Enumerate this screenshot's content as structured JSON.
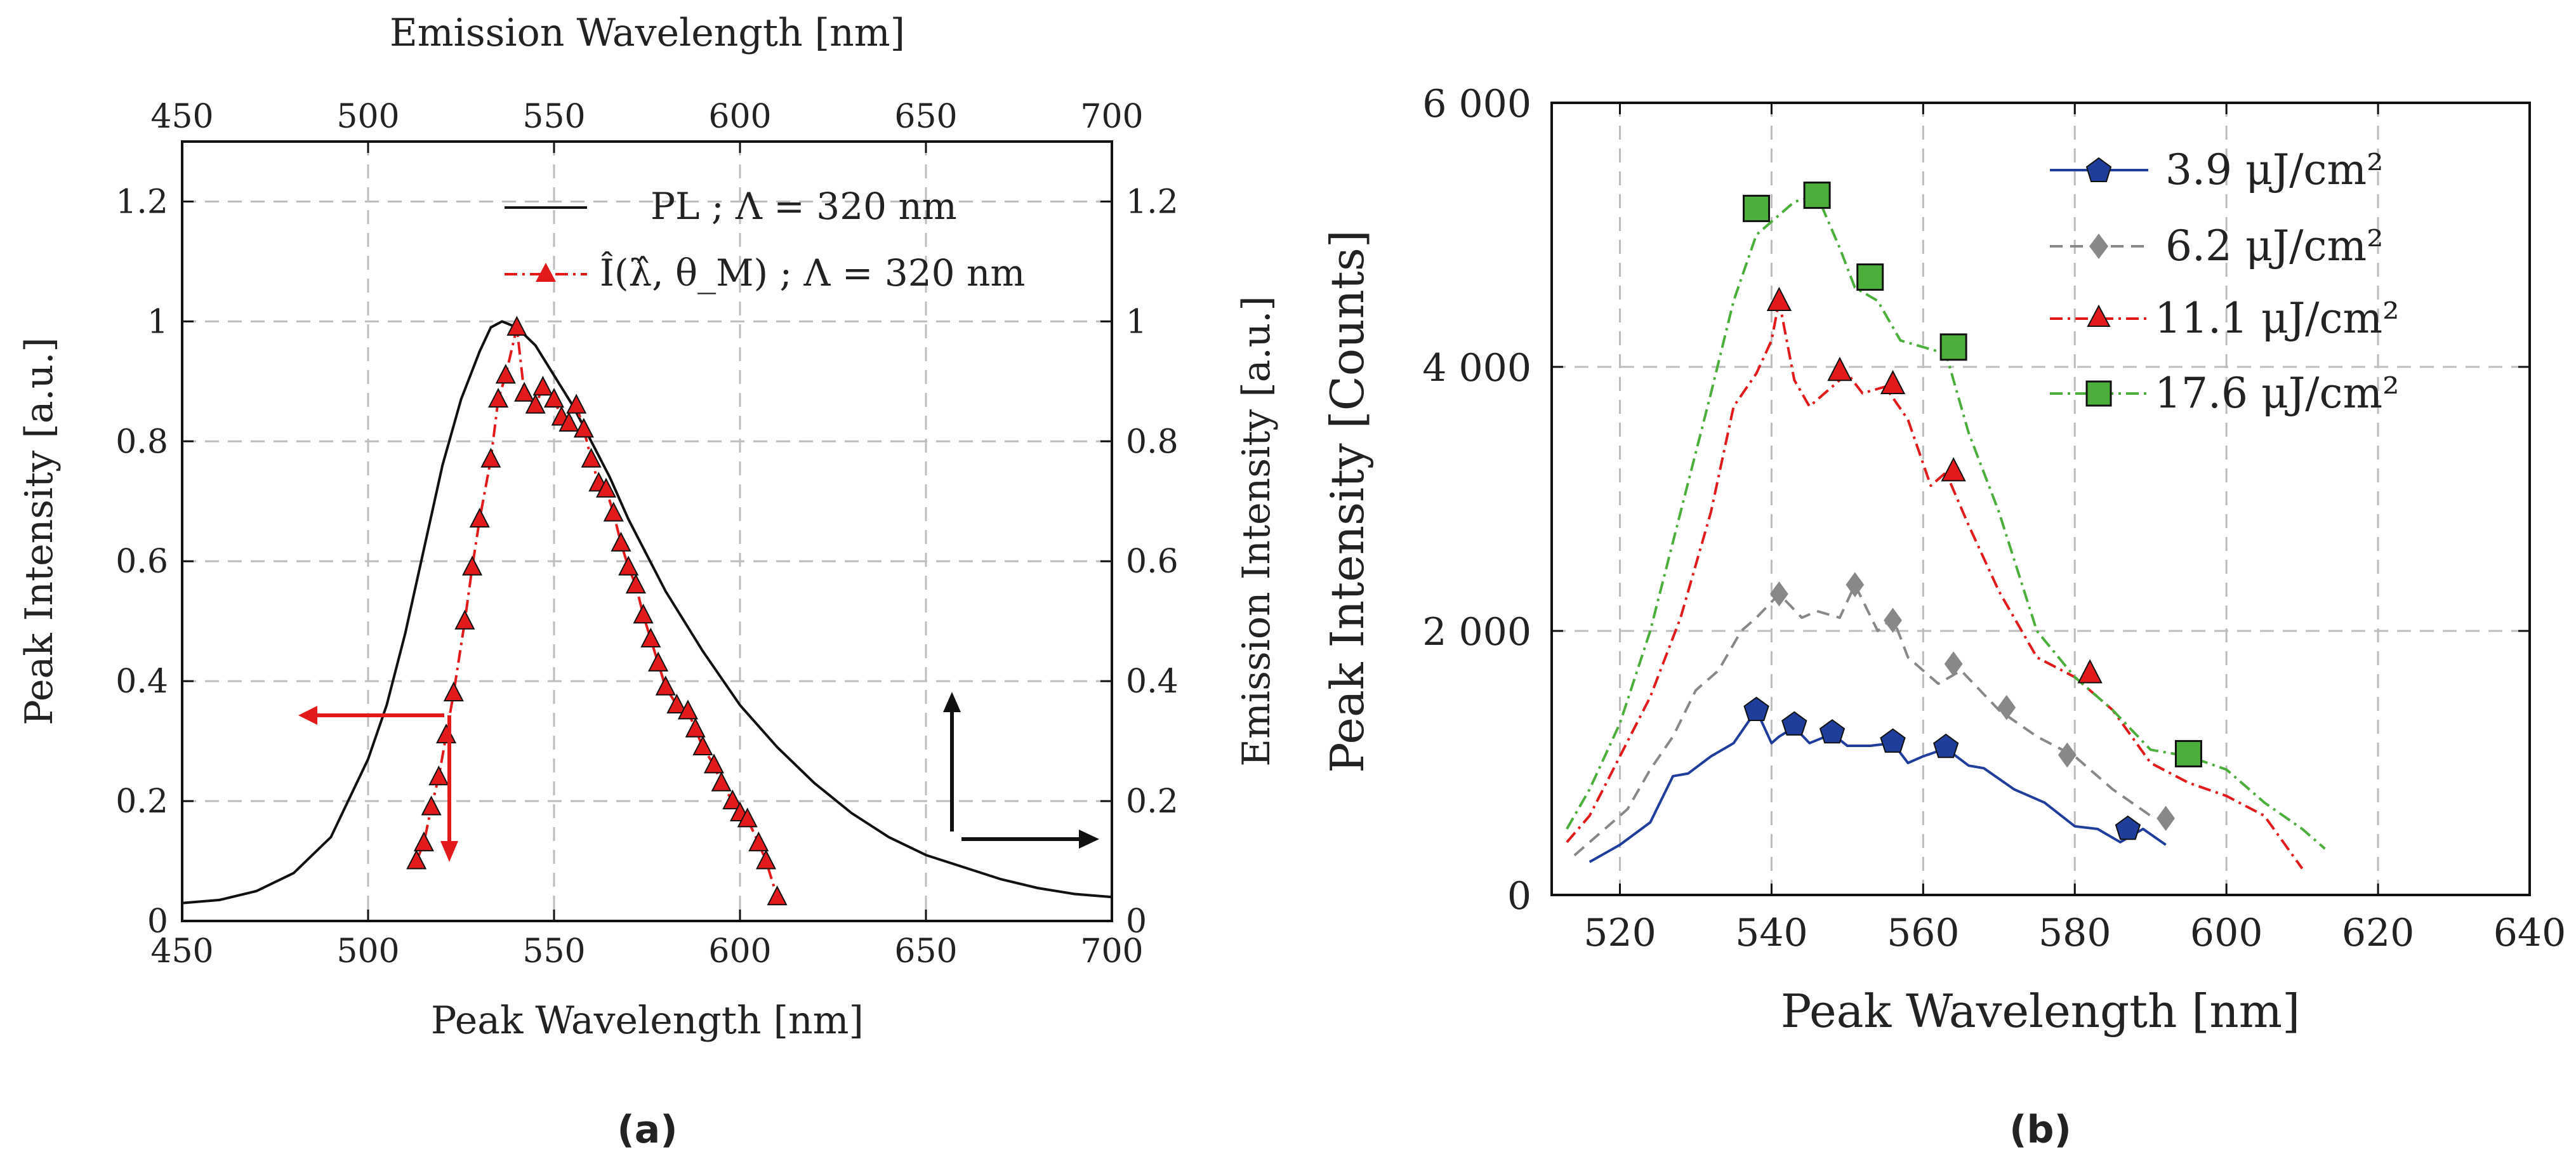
{
  "chart_data": [
    {
      "id": "a",
      "type": "line",
      "panel_label": "(a)",
      "xlabel": "Peak Wavelength [nm]",
      "x2label": "Emission Wavelength [nm]",
      "ylabel": "Peak Intensity [a.u.]",
      "y2label": "Emission Intensity [a.u.]",
      "xlim": [
        450,
        700
      ],
      "ylim": [
        0,
        1.3
      ],
      "xticks": [
        "450",
        "500",
        "550",
        "600",
        "650",
        "700"
      ],
      "yticks": [
        "0",
        "0.2",
        "0.4",
        "0.6",
        "0.8",
        "1",
        "1.2"
      ],
      "grid": true,
      "legend_position": "top-right",
      "series": [
        {
          "name": "PL ; Λ = 320 nm",
          "color": "#111111",
          "style": "solid",
          "marker": "none",
          "x": [
            450,
            460,
            470,
            480,
            490,
            500,
            505,
            510,
            515,
            520,
            525,
            530,
            533,
            536,
            540,
            545,
            550,
            555,
            560,
            565,
            570,
            580,
            590,
            600,
            610,
            620,
            630,
            640,
            650,
            660,
            670,
            680,
            690,
            700
          ],
          "y": [
            0.03,
            0.035,
            0.05,
            0.08,
            0.14,
            0.27,
            0.36,
            0.48,
            0.62,
            0.76,
            0.87,
            0.95,
            0.99,
            1.0,
            0.99,
            0.96,
            0.91,
            0.86,
            0.8,
            0.74,
            0.67,
            0.55,
            0.45,
            0.36,
            0.29,
            0.23,
            0.18,
            0.14,
            0.11,
            0.09,
            0.07,
            0.055,
            0.045,
            0.04
          ]
        },
        {
          "name": "Î(λ̂, θ_M) ; Λ = 320 nm",
          "color": "#e31a1c",
          "style": "dashdot",
          "marker": "triangle",
          "x": [
            513,
            515,
            517,
            519,
            521,
            523,
            526,
            528,
            530,
            533,
            535,
            537,
            540,
            542,
            545,
            547,
            550,
            552,
            554,
            556,
            558,
            560,
            562,
            564,
            566,
            568,
            570,
            572,
            574,
            576,
            578,
            580,
            583,
            586,
            588,
            590,
            593,
            595,
            598,
            600,
            602,
            605,
            607,
            610
          ],
          "y": [
            0.1,
            0.13,
            0.19,
            0.24,
            0.31,
            0.38,
            0.5,
            0.59,
            0.67,
            0.77,
            0.87,
            0.91,
            0.99,
            0.88,
            0.86,
            0.89,
            0.87,
            0.84,
            0.83,
            0.86,
            0.82,
            0.77,
            0.73,
            0.72,
            0.68,
            0.63,
            0.59,
            0.56,
            0.51,
            0.47,
            0.43,
            0.39,
            0.36,
            0.35,
            0.32,
            0.29,
            0.26,
            0.23,
            0.2,
            0.18,
            0.17,
            0.13,
            0.1,
            0.04
          ]
        }
      ],
      "annotations": [
        "left arrow: red series belongs to left axis",
        "right arrow: black series belongs to right axis"
      ]
    },
    {
      "id": "b",
      "type": "line",
      "panel_label": "(b)",
      "xlabel": "Peak Wavelength [nm]",
      "ylabel": "Peak Intensity [Counts]",
      "xlim": [
        511,
        640
      ],
      "ylim": [
        0,
        6000
      ],
      "xticks": [
        "520",
        "540",
        "560",
        "580",
        "600",
        "620",
        "640"
      ],
      "yticks": [
        "0",
        "2 000",
        "4 000",
        "6 000"
      ],
      "grid": true,
      "legend_position": "top-right",
      "series": [
        {
          "name": "3.9 μJ/cm²",
          "color": "#1f3d9a",
          "style": "solid",
          "marker": "pentagon",
          "x": [
            516,
            520,
            524,
            527,
            529,
            532,
            535,
            538,
            540,
            541,
            543,
            545,
            548,
            550,
            553,
            556,
            558,
            560,
            563,
            566,
            568,
            572,
            576,
            580,
            583,
            586,
            589,
            592
          ],
          "y": [
            250,
            380,
            550,
            900,
            920,
            1050,
            1150,
            1400,
            1150,
            1200,
            1270,
            1150,
            1220,
            1130,
            1130,
            1150,
            1000,
            1050,
            1110,
            980,
            960,
            800,
            700,
            520,
            500,
            400,
            500,
            380
          ],
          "marker_x": [
            538,
            543,
            548,
            556,
            563,
            587
          ],
          "marker_y": [
            1400,
            1290,
            1230,
            1160,
            1120,
            500
          ]
        },
        {
          "name": "6.2 μJ/cm²",
          "color": "#888888",
          "style": "dashed",
          "marker": "diamond",
          "x": [
            514,
            518,
            521,
            524,
            527,
            530,
            533,
            536,
            538,
            541,
            544,
            546,
            549,
            551,
            554,
            556,
            558,
            562,
            565,
            570,
            575,
            580,
            585,
            590
          ],
          "y": [
            300,
            500,
            650,
            950,
            1200,
            1550,
            1700,
            2000,
            2100,
            2280,
            2100,
            2150,
            2100,
            2350,
            2000,
            2100,
            1800,
            1600,
            1700,
            1400,
            1200,
            1050,
            800,
            600
          ],
          "marker_x": [
            541,
            551,
            556,
            564,
            571,
            579,
            592
          ],
          "marker_y": [
            2280,
            2350,
            2080,
            1750,
            1420,
            1060,
            580
          ]
        },
        {
          "name": "11.1 μJ/cm²",
          "color": "#e31a1c",
          "style": "dashdot",
          "marker": "triangle",
          "x": [
            513,
            516,
            520,
            524,
            528,
            532,
            535,
            538,
            540,
            541,
            543,
            545,
            548,
            550,
            552,
            555,
            558,
            561,
            563,
            566,
            570,
            575,
            580,
            585,
            590,
            595,
            600,
            605,
            610
          ],
          "y": [
            400,
            600,
            1050,
            1500,
            2100,
            2900,
            3700,
            3950,
            4200,
            4500,
            3900,
            3700,
            3850,
            3950,
            3800,
            3850,
            3600,
            3100,
            3200,
            2800,
            2300,
            1800,
            1650,
            1400,
            1000,
            850,
            750,
            600,
            200
          ],
          "marker_x": [
            541,
            549,
            556,
            564,
            582
          ],
          "marker_y": [
            4500,
            3970,
            3870,
            3210,
            1680
          ]
        },
        {
          "name": "17.6 μJ/cm²",
          "color": "#4caf3c",
          "style": "dashdot",
          "marker": "square",
          "x": [
            513,
            516,
            520,
            524,
            528,
            532,
            535,
            538,
            541,
            543,
            546,
            549,
            551,
            554,
            557,
            560,
            563,
            566,
            570,
            575,
            580,
            585,
            590,
            595,
            600,
            605,
            610,
            613
          ],
          "y": [
            500,
            800,
            1300,
            2000,
            2900,
            3800,
            4500,
            5000,
            5150,
            5250,
            5300,
            4900,
            4600,
            4500,
            4200,
            4150,
            4100,
            3500,
            2900,
            2000,
            1650,
            1400,
            1100,
            1050,
            950,
            700,
            500,
            350
          ],
          "marker_x": [
            538,
            546,
            553,
            564,
            595
          ],
          "marker_y": [
            5200,
            5300,
            4680,
            4150,
            1070
          ]
        }
      ]
    }
  ]
}
